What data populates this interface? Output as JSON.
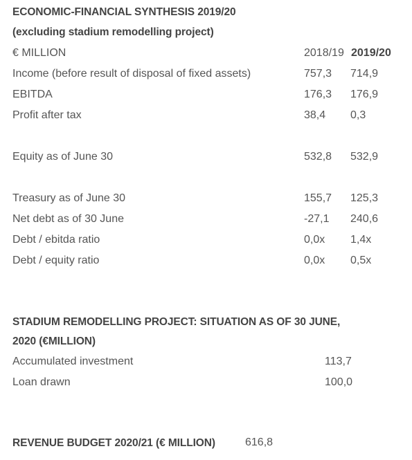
{
  "synthesis": {
    "title_line1": "ECONOMIC-FINANCIAL SYNTHESIS 2019/20",
    "title_line2": "(excluding stadium remodelling project)",
    "unit_label": "€ MILLION",
    "col1_header": "2018/19",
    "col2_header": "2019/20",
    "rows": [
      {
        "label": "Income (before result of disposal of fixed assets)",
        "v1": "757,3",
        "v2": "714,9"
      },
      {
        "label": "EBITDA",
        "v1": "176,3",
        "v2": "176,9"
      },
      {
        "label": "Profit after tax",
        "v1": "38,4",
        "v2": "0,3"
      },
      {
        "label": "Equity as of June 30",
        "v1": "532,8",
        "v2": "532,9"
      },
      {
        "label": "Treasury as of June 30",
        "v1": "155,7",
        "v2": "125,3"
      },
      {
        "label": "Net debt as of 30 June",
        "v1": "-27,1",
        "v2": "240,6"
      },
      {
        "label": "Debt / ebitda ratio",
        "v1": "0,0x",
        "v2": "1,4x"
      },
      {
        "label": "Debt / equity ratio",
        "v1": "0,0x",
        "v2": "0,5x"
      }
    ]
  },
  "stadium": {
    "title_line1": "STADIUM REMODELLING PROJECT: SITUATION AS OF 30 JUNE,",
    "title_line2": "2020 (€MILLION)",
    "rows": [
      {
        "label": "Accumulated investment",
        "value": "113,7"
      },
      {
        "label": "Loan drawn",
        "value": "100,0"
      }
    ]
  },
  "budget": {
    "title": "REVENUE BUDGET 2020/21 (€ MILLION)",
    "value": "616,8"
  }
}
